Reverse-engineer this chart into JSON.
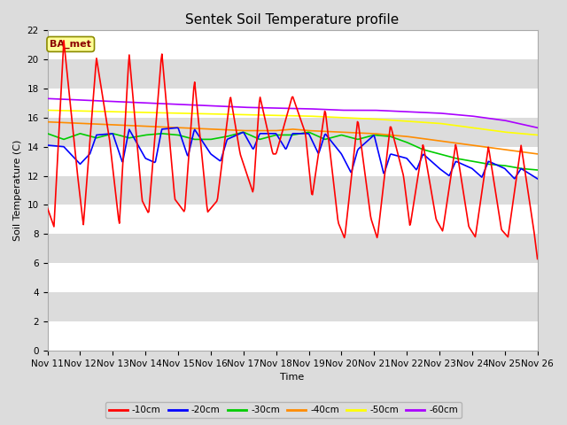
{
  "title": "Sentek Soil Temperature profile",
  "xlabel": "Time",
  "ylabel": "Soil Temperature (C)",
  "annotation": "BA_met",
  "ylim": [
    0,
    22
  ],
  "yticks": [
    0,
    2,
    4,
    6,
    8,
    10,
    12,
    14,
    16,
    18,
    20,
    22
  ],
  "xlim": [
    0,
    15
  ],
  "xtick_labels": [
    "Nov 11",
    "Nov 12",
    "Nov 13",
    "Nov 14",
    "Nov 15",
    "Nov 16",
    "Nov 17",
    "Nov 18",
    "Nov 19",
    "Nov 20",
    "Nov 21",
    "Nov 22",
    "Nov 23",
    "Nov 24",
    "Nov 25",
    "Nov 26"
  ],
  "series": {
    "-10cm": {
      "color": "#FF0000",
      "lw": 1.2
    },
    "-20cm": {
      "color": "#0000FF",
      "lw": 1.2
    },
    "-30cm": {
      "color": "#00CC00",
      "lw": 1.2
    },
    "-40cm": {
      "color": "#FF8C00",
      "lw": 1.2
    },
    "-50cm": {
      "color": "#FFFF00",
      "lw": 1.2
    },
    "-60cm": {
      "color": "#AA00FF",
      "lw": 1.2
    }
  },
  "bg_light": "#EBEBEB",
  "bg_dark": "#DCDCDC",
  "grid_color": "#FFFFFF",
  "title_fontsize": 11,
  "label_fontsize": 8,
  "tick_fontsize": 7.5
}
